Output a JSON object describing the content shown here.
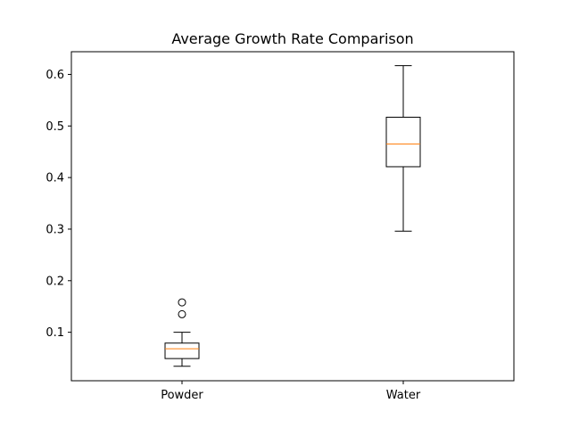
{
  "chart_data": {
    "type": "box",
    "title": "Average Growth Rate Comparison",
    "xlabel": "",
    "ylabel": "",
    "categories": [
      "Powder",
      "Water"
    ],
    "boxes": [
      {
        "label": "Powder",
        "whisker_low": 0.034,
        "q1": 0.049,
        "median": 0.068,
        "q3": 0.079,
        "whisker_high": 0.1,
        "outliers": [
          0.135,
          0.158
        ]
      },
      {
        "label": "Water",
        "whisker_low": 0.296,
        "q1": 0.421,
        "median": 0.465,
        "q3": 0.517,
        "whisker_high": 0.617,
        "outliers": []
      }
    ],
    "ylim": [
      0.006,
      0.644
    ],
    "yticks": [
      "0.1",
      "0.2",
      "0.3",
      "0.4",
      "0.5",
      "0.6"
    ],
    "grid": false,
    "colors": {
      "box": "#000000",
      "median": "#ff7f0e",
      "outlier": "#000000"
    }
  }
}
